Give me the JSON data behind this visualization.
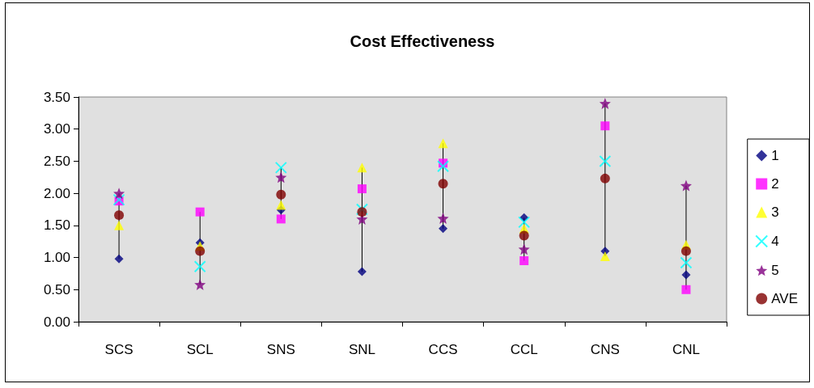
{
  "chart_data": {
    "type": "scatter",
    "title": "Cost Effectiveness",
    "categories": [
      "SCS",
      "SCL",
      "SNS",
      "SNL",
      "CCS",
      "CCL",
      "CNS",
      "CNL"
    ],
    "series": [
      {
        "name": "1",
        "color": "#000080",
        "marker": "diamond",
        "values": [
          0.98,
          1.23,
          1.74,
          0.78,
          1.45,
          1.62,
          1.1,
          0.73
        ]
      },
      {
        "name": "2",
        "color": "#ff00ff",
        "marker": "square",
        "values": [
          1.88,
          1.71,
          1.6,
          2.07,
          2.47,
          0.95,
          3.05,
          0.5
        ]
      },
      {
        "name": "3",
        "color": "#ffff00",
        "marker": "triangle",
        "values": [
          1.5,
          1.18,
          1.82,
          2.4,
          2.78,
          1.45,
          1.02,
          1.2
        ]
      },
      {
        "name": "4",
        "color": "#00ffff",
        "marker": "cross",
        "values": [
          1.9,
          0.86,
          2.4,
          1.75,
          2.42,
          1.55,
          2.5,
          0.92
        ]
      },
      {
        "name": "5",
        "color": "#800080",
        "marker": "star",
        "values": [
          2.0,
          0.58,
          2.25,
          1.6,
          1.61,
          1.13,
          3.4,
          2.12
        ]
      },
      {
        "name": "AVE",
        "color": "#800000",
        "marker": "circle",
        "values": [
          1.66,
          1.1,
          1.98,
          1.71,
          2.15,
          1.34,
          2.23,
          1.1
        ]
      }
    ],
    "ylim": [
      0,
      3.5
    ],
    "yticks": [
      {
        "value": 0,
        "label": "0.00"
      },
      {
        "value": 0.5,
        "label": "0.50"
      },
      {
        "value": 1,
        "label": "1.00"
      },
      {
        "value": 1.5,
        "label": "1.50"
      },
      {
        "value": 2,
        "label": "2.00"
      },
      {
        "value": 2.5,
        "label": "2.50"
      },
      {
        "value": 3,
        "label": "3.00"
      },
      {
        "value": 3.5,
        "label": "3.50"
      }
    ],
    "grid": false,
    "legend": "right"
  }
}
